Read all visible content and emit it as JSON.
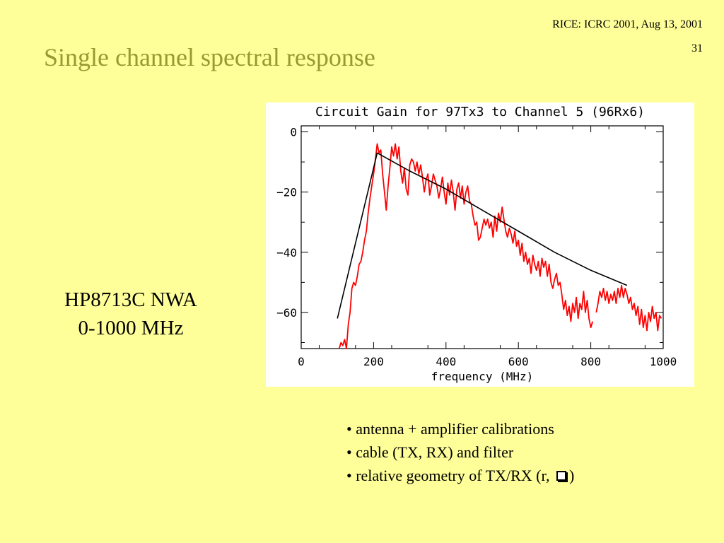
{
  "slide": {
    "header_note": "RICE: ICRC 2001, Aug 13, 2001",
    "slide_number": "31",
    "title": "Single channel spectral response",
    "left_label_line1": "HP8713C NWA",
    "left_label_line2": "0-1000 MHz",
    "bullets": [
      "• antenna + amplifier calibrations",
      "• cable (TX, RX) and filter",
      "• relative geometry of TX/RX (r,"
    ],
    "bullet3_tail": ")"
  },
  "chart_data": {
    "type": "line",
    "title": "Circuit Gain for 97Tx3 to Channel 5 (96Rx6)",
    "xlabel": "frequency (MHz)",
    "ylabel": "",
    "xlim": [
      0,
      1000
    ],
    "ylim": [
      -72,
      2
    ],
    "xticks": [
      0,
      200,
      400,
      600,
      800,
      1000
    ],
    "yticks": [
      0,
      -20,
      -40,
      -60
    ],
    "grid": false,
    "series": [
      {
        "color": "#ff0000",
        "segments": [
          [
            [
              105,
              -72
            ],
            [
              110,
              -70
            ],
            [
              115,
              -71
            ],
            [
              120,
              -69
            ],
            [
              125,
              -72
            ],
            [
              130,
              -64
            ],
            [
              135,
              -60
            ],
            [
              140,
              -52
            ],
            [
              145,
              -50
            ],
            [
              150,
              -51
            ],
            [
              155,
              -48
            ],
            [
              160,
              -44
            ],
            [
              165,
              -43
            ],
            [
              170,
              -40
            ],
            [
              175,
              -36
            ],
            [
              180,
              -33
            ],
            [
              185,
              -27
            ],
            [
              190,
              -22
            ],
            [
              195,
              -18
            ],
            [
              200,
              -14
            ],
            [
              205,
              -9
            ],
            [
              210,
              -4
            ],
            [
              215,
              -7
            ],
            [
              220,
              -6
            ],
            [
              225,
              -14
            ],
            [
              230,
              -20
            ],
            [
              235,
              -26
            ],
            [
              240,
              -18
            ],
            [
              245,
              -12
            ],
            [
              250,
              -5
            ],
            [
              255,
              -8
            ],
            [
              260,
              -4
            ],
            [
              265,
              -9
            ],
            [
              270,
              -5
            ],
            [
              275,
              -13
            ],
            [
              280,
              -17
            ],
            [
              285,
              -12
            ],
            [
              290,
              -19
            ],
            [
              295,
              -21
            ],
            [
              300,
              -11
            ],
            [
              305,
              -9
            ],
            [
              310,
              -10
            ],
            [
              315,
              -13
            ],
            [
              320,
              -10
            ],
            [
              325,
              -14
            ],
            [
              330,
              -11
            ],
            [
              335,
              -15
            ],
            [
              340,
              -20
            ],
            [
              345,
              -16
            ],
            [
              350,
              -14
            ],
            [
              355,
              -21
            ],
            [
              360,
              -18
            ],
            [
              365,
              -14
            ],
            [
              370,
              -16
            ],
            [
              375,
              -18
            ],
            [
              380,
              -22
            ],
            [
              385,
              -19
            ],
            [
              390,
              -15
            ],
            [
              395,
              -20
            ],
            [
              400,
              -24
            ],
            [
              405,
              -17
            ],
            [
              410,
              -21
            ],
            [
              415,
              -16
            ],
            [
              420,
              -20
            ],
            [
              425,
              -26
            ],
            [
              430,
              -19
            ],
            [
              435,
              -17
            ],
            [
              440,
              -22
            ],
            [
              445,
              -18
            ],
            [
              450,
              -24
            ],
            [
              455,
              -20
            ],
            [
              460,
              -18
            ],
            [
              465,
              -23
            ],
            [
              470,
              -24
            ],
            [
              475,
              -28
            ],
            [
              480,
              -31
            ],
            [
              485,
              -30
            ],
            [
              490,
              -36
            ],
            [
              495,
              -35
            ],
            [
              500,
              -32
            ],
            [
              505,
              -29
            ],
            [
              510,
              -31
            ],
            [
              515,
              -29
            ],
            [
              520,
              -32
            ],
            [
              525,
              -30
            ],
            [
              530,
              -35
            ],
            [
              535,
              -28
            ],
            [
              540,
              -33
            ],
            [
              545,
              -27
            ],
            [
              550,
              -30
            ],
            [
              555,
              -25
            ],
            [
              560,
              -29
            ],
            [
              565,
              -33
            ],
            [
              570,
              -35
            ],
            [
              575,
              -32
            ],
            [
              580,
              -34
            ],
            [
              585,
              -37
            ],
            [
              590,
              -33
            ],
            [
              595,
              -38
            ],
            [
              600,
              -36
            ],
            [
              605,
              -41
            ],
            [
              610,
              -37
            ],
            [
              615,
              -43
            ],
            [
              620,
              -40
            ],
            [
              625,
              -44
            ],
            [
              630,
              -42
            ],
            [
              635,
              -47
            ],
            [
              640,
              -41
            ],
            [
              645,
              -44
            ],
            [
              650,
              -46
            ],
            [
              655,
              -43
            ],
            [
              660,
              -48
            ],
            [
              665,
              -42
            ],
            [
              670,
              -45
            ],
            [
              675,
              -43
            ],
            [
              680,
              -48
            ],
            [
              685,
              -44
            ],
            [
              690,
              -50
            ],
            [
              695,
              -52
            ],
            [
              700,
              -49
            ],
            [
              705,
              -47
            ],
            [
              710,
              -51
            ],
            [
              715,
              -50
            ],
            [
              720,
              -54
            ],
            [
              725,
              -59
            ],
            [
              730,
              -56
            ],
            [
              735,
              -61
            ],
            [
              740,
              -58
            ],
            [
              745,
              -63
            ],
            [
              750,
              -57
            ],
            [
              755,
              -60
            ],
            [
              760,
              -55
            ],
            [
              765,
              -62
            ],
            [
              770,
              -57
            ],
            [
              775,
              -59
            ],
            [
              780,
              -53
            ],
            [
              785,
              -60
            ],
            [
              790,
              -56
            ],
            [
              795,
              -62
            ],
            [
              800,
              -65
            ],
            [
              805,
              -63
            ]
          ],
          [
            [
              815,
              -60
            ],
            [
              820,
              -57
            ],
            [
              825,
              -53
            ],
            [
              830,
              -55
            ],
            [
              835,
              -52
            ],
            [
              840,
              -56
            ],
            [
              845,
              -53
            ],
            [
              850,
              -57
            ],
            [
              855,
              -54
            ],
            [
              860,
              -56
            ],
            [
              865,
              -53
            ],
            [
              870,
              -57
            ],
            [
              875,
              -52
            ],
            [
              880,
              -55
            ],
            [
              885,
              -51
            ],
            [
              890,
              -55
            ],
            [
              895,
              -52
            ],
            [
              900,
              -54
            ],
            [
              905,
              -57
            ],
            [
              910,
              -55
            ],
            [
              915,
              -59
            ],
            [
              920,
              -57
            ],
            [
              925,
              -61
            ],
            [
              930,
              -58
            ],
            [
              935,
              -64
            ],
            [
              940,
              -59
            ],
            [
              945,
              -65
            ],
            [
              950,
              -61
            ],
            [
              955,
              -66
            ],
            [
              960,
              -60
            ],
            [
              965,
              -63
            ],
            [
              970,
              -58
            ],
            [
              975,
              -62
            ],
            [
              980,
              -60
            ],
            [
              985,
              -66
            ],
            [
              990,
              -61
            ],
            [
              995,
              -62
            ]
          ]
        ]
      },
      {
        "color": "#000000",
        "segments": [
          [
            [
              100,
              -62
            ],
            [
              210,
              -7
            ],
            [
              300,
              -13
            ],
            [
              400,
              -19
            ],
            [
              500,
              -26
            ],
            [
              600,
              -33
            ],
            [
              700,
              -40
            ],
            [
              800,
              -46
            ],
            [
              900,
              -51
            ]
          ]
        ]
      }
    ]
  }
}
